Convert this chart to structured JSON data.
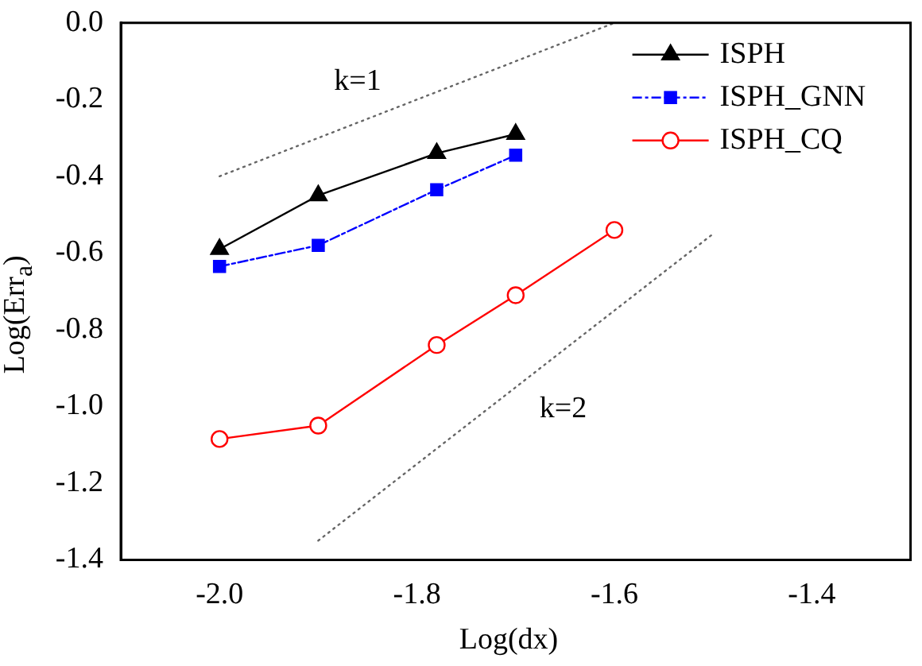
{
  "chart_data": {
    "type": "line",
    "xlabel": "Log(dx)",
    "ylabel": "Log(Err$_{a}$)",
    "xlim": [
      -2.1,
      -1.3
    ],
    "xticks": [
      {
        "value": -2.0,
        "label": "-2.0"
      },
      {
        "value": -1.8,
        "label": "-1.8"
      },
      {
        "value": -1.6,
        "label": "-1.6"
      },
      {
        "value": -1.4,
        "label": "-1.4"
      }
    ],
    "ylim": [
      -1.4,
      0.0
    ],
    "yticks": [
      {
        "value": -1.4,
        "label": "-1.4"
      },
      {
        "value": -1.2,
        "label": "-1.2"
      },
      {
        "value": -1.0,
        "label": "-1.0"
      },
      {
        "value": -0.8,
        "label": "-0.8"
      },
      {
        "value": -0.6,
        "label": "-0.6"
      },
      {
        "value": -0.4,
        "label": "-0.4"
      },
      {
        "value": -0.2,
        "label": "-0.2"
      },
      {
        "value": 0.0,
        "label": "0.0"
      }
    ],
    "grid": false,
    "legend": "top right",
    "series": [
      {
        "name": "ISPH",
        "color": "#000000",
        "marker": "triangle",
        "line_style": "solid",
        "x": [
          -2.0,
          -1.9,
          -1.78,
          -1.7
        ],
        "values": [
          -0.59,
          -0.45,
          -0.34,
          -0.29
        ]
      },
      {
        "name": "ISPH_GNN",
        "color": "#0000ff",
        "marker": "square",
        "line_style": "dashed",
        "x": [
          -2.0,
          -1.9,
          -1.78,
          -1.7
        ],
        "values": [
          -0.635,
          -0.58,
          -0.435,
          -0.345
        ]
      },
      {
        "name": "ISPH_CQ",
        "color": "#ff0000",
        "marker": "circle",
        "line_style": "solid",
        "x": [
          -2.0,
          -1.9,
          -1.78,
          -1.7,
          -1.6
        ],
        "values": [
          -1.085,
          -1.05,
          -0.84,
          -0.71,
          -0.54
        ]
      },
      {
        "color": "#666666",
        "marker": "none",
        "line_style": "dotted",
        "x": [
          -2.0,
          -1.6
        ],
        "values": [
          -0.4,
          0.0
        ]
      },
      {
        "color": "#666666",
        "marker": "none",
        "line_style": "dotted",
        "x": [
          -1.9,
          -1.5
        ],
        "values": [
          -1.35,
          -0.55
        ]
      }
    ],
    "annotations": [
      "k=1",
      "k=2"
    ]
  }
}
